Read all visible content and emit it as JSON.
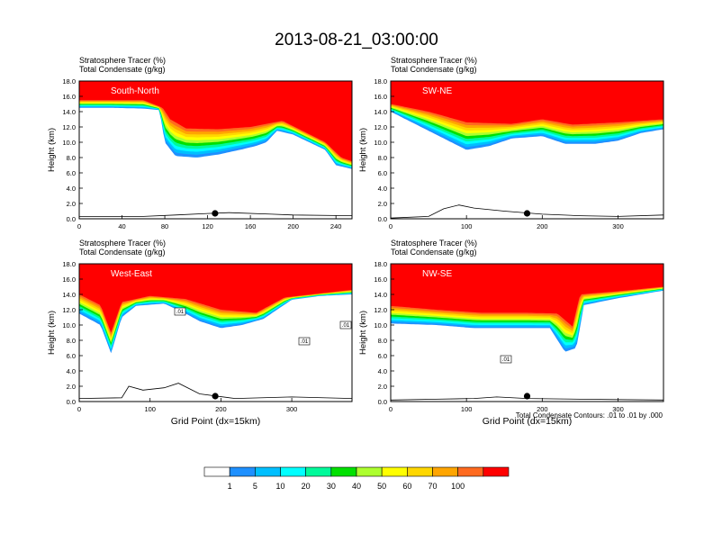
{
  "title": "2013-08-21_03:00:00",
  "colors": {
    "levels": [
      "#ffffff",
      "#1e90ff",
      "#00bfff",
      "#00ffff",
      "#00fa9a",
      "#00e000",
      "#adff2f",
      "#ffff00",
      "#ffd700",
      "#ffa500",
      "#ff6a1f",
      "#ff0000"
    ]
  },
  "chart_data": [
    {
      "type": "contour",
      "label": "South-North",
      "left_title_1": "Stratosphere Tracer   (%)",
      "left_title_2": "Total Condensate   (g/kg)",
      "ylabel": "Height (km)",
      "xlabel": "",
      "xlim": [
        0,
        255
      ],
      "ylim": [
        0,
        18
      ],
      "xticks": [
        0,
        40,
        80,
        120,
        160,
        200,
        240
      ],
      "yticks": [
        "0.0",
        "2.0",
        "4.0",
        "6.0",
        "8.0",
        "10.0",
        "12.0",
        "14.0",
        "16.0",
        "18.0"
      ],
      "tropopause_km": [
        [
          0,
          14.5
        ],
        [
          30,
          14.5
        ],
        [
          60,
          14.4
        ],
        [
          75,
          14.2
        ],
        [
          80,
          10
        ],
        [
          90,
          8.2
        ],
        [
          110,
          8.0
        ],
        [
          130,
          8.4
        ],
        [
          150,
          9
        ],
        [
          165,
          9.5
        ],
        [
          175,
          10
        ],
        [
          185,
          11.5
        ],
        [
          200,
          11
        ],
        [
          230,
          9
        ],
        [
          240,
          7
        ],
        [
          255,
          6.5
        ]
      ],
      "red_base_km": [
        [
          0,
          15.5
        ],
        [
          60,
          15.5
        ],
        [
          78,
          14.5
        ],
        [
          85,
          13
        ],
        [
          100,
          11.8
        ],
        [
          130,
          11.7
        ],
        [
          160,
          12
        ],
        [
          190,
          12.8
        ],
        [
          230,
          10
        ],
        [
          245,
          8
        ],
        [
          255,
          7.5
        ]
      ],
      "terrain_km": [
        [
          0,
          0.3
        ],
        [
          60,
          0.3
        ],
        [
          90,
          0.5
        ],
        [
          120,
          0.7
        ],
        [
          140,
          0.8
        ],
        [
          180,
          0.6
        ],
        [
          200,
          0.5
        ],
        [
          255,
          0.4
        ]
      ],
      "marker_x": 127
    },
    {
      "type": "contour",
      "label": "SW-NE",
      "left_title_1": "Stratosphere Tracer   (%)",
      "left_title_2": "Total Condensate   (g/kg)",
      "ylabel": "Height (km)",
      "xlabel": "",
      "xlim": [
        0,
        360
      ],
      "ylim": [
        0,
        18
      ],
      "xticks": [
        0,
        100,
        200,
        300
      ],
      "yticks": [
        "0.0",
        "2.0",
        "4.0",
        "6.0",
        "8.0",
        "10.0",
        "12.0",
        "14.0",
        "16.0",
        "18.0"
      ],
      "tropopause_km": [
        [
          0,
          14
        ],
        [
          30,
          12.5
        ],
        [
          60,
          11
        ],
        [
          100,
          9
        ],
        [
          130,
          9.5
        ],
        [
          160,
          10.5
        ],
        [
          200,
          10.8
        ],
        [
          230,
          9.8
        ],
        [
          270,
          9.8
        ],
        [
          300,
          10.2
        ],
        [
          330,
          11.2
        ],
        [
          360,
          11.7
        ]
      ],
      "red_base_km": [
        [
          0,
          15
        ],
        [
          50,
          14
        ],
        [
          100,
          12.6
        ],
        [
          160,
          12.4
        ],
        [
          200,
          13
        ],
        [
          240,
          12.3
        ],
        [
          300,
          12.6
        ],
        [
          360,
          13
        ]
      ],
      "terrain_km": [
        [
          0,
          0.1
        ],
        [
          50,
          0.3
        ],
        [
          70,
          1.3
        ],
        [
          90,
          1.8
        ],
        [
          110,
          1.4
        ],
        [
          150,
          1
        ],
        [
          200,
          0.6
        ],
        [
          250,
          0.4
        ],
        [
          300,
          0.3
        ],
        [
          360,
          0.5
        ]
      ],
      "marker_x": 180
    },
    {
      "type": "contour",
      "label": "West-East",
      "left_title_1": "Stratosphere Tracer   (%)",
      "left_title_2": "Total Condensate   (g/kg)",
      "ylabel": "Height (km)",
      "xlabel": "Grid Point (dx=15km)",
      "xlim": [
        0,
        385
      ],
      "ylim": [
        0,
        18
      ],
      "xticks": [
        0,
        100,
        200,
        300
      ],
      "yticks": [
        "0.0",
        "2.0",
        "4.0",
        "6.0",
        "8.0",
        "10.0",
        "12.0",
        "14.0",
        "16.0",
        "18.0"
      ],
      "tropopause_km": [
        [
          0,
          11.5
        ],
        [
          30,
          10
        ],
        [
          45,
          6.3
        ],
        [
          60,
          11
        ],
        [
          80,
          12.5
        ],
        [
          120,
          12.8
        ],
        [
          150,
          11.5
        ],
        [
          170,
          10.5
        ],
        [
          200,
          9.6
        ],
        [
          230,
          10
        ],
        [
          260,
          10.8
        ],
        [
          300,
          13.3
        ],
        [
          340,
          13.8
        ],
        [
          385,
          14
        ]
      ],
      "red_base_km": [
        [
          0,
          14
        ],
        [
          30,
          12.6
        ],
        [
          45,
          9
        ],
        [
          60,
          13
        ],
        [
          100,
          13.8
        ],
        [
          150,
          13.4
        ],
        [
          200,
          12
        ],
        [
          250,
          11.6
        ],
        [
          290,
          13.6
        ],
        [
          385,
          14.6
        ]
      ],
      "terrain_km": [
        [
          0,
          0.4
        ],
        [
          60,
          0.5
        ],
        [
          70,
          2
        ],
        [
          90,
          1.5
        ],
        [
          120,
          1.8
        ],
        [
          140,
          2.4
        ],
        [
          170,
          1
        ],
        [
          220,
          0.4
        ],
        [
          300,
          0.6
        ],
        [
          385,
          0.4
        ]
      ],
      "marker_x": 192,
      "contour_labels": [
        ".01",
        ".01",
        ".01"
      ]
    },
    {
      "type": "contour",
      "label": "NW-SE",
      "left_title_1": "Stratosphere Tracer   (%)",
      "left_title_2": "Total Condensate   (g/kg)",
      "ylabel": "Height (km)",
      "xlabel": "Grid Point (dx=15km)",
      "xlim": [
        0,
        360
      ],
      "ylim": [
        0,
        18
      ],
      "xticks": [
        0,
        100,
        200,
        300
      ],
      "yticks": [
        "0.0",
        "2.0",
        "4.0",
        "6.0",
        "8.0",
        "10.0",
        "12.0",
        "14.0",
        "16.0",
        "18.0"
      ],
      "tropopause_km": [
        [
          0,
          10.2
        ],
        [
          60,
          10
        ],
        [
          110,
          9.6
        ],
        [
          160,
          9.6
        ],
        [
          210,
          9.6
        ],
        [
          230,
          6.5
        ],
        [
          245,
          7
        ],
        [
          255,
          12.6
        ],
        [
          300,
          13.5
        ],
        [
          360,
          14.5
        ]
      ],
      "red_base_km": [
        [
          0,
          12.5
        ],
        [
          60,
          12
        ],
        [
          120,
          11.6
        ],
        [
          180,
          11.6
        ],
        [
          220,
          11.5
        ],
        [
          240,
          9.8
        ],
        [
          250,
          14
        ],
        [
          300,
          14.4
        ],
        [
          360,
          15
        ]
      ],
      "terrain_km": [
        [
          0,
          0.2
        ],
        [
          60,
          0.3
        ],
        [
          110,
          0.4
        ],
        [
          140,
          0.6
        ],
        [
          180,
          0.4
        ],
        [
          250,
          0.3
        ],
        [
          360,
          0.2
        ]
      ],
      "marker_x": 180,
      "contour_labels": [
        ".01"
      ]
    }
  ],
  "contour_note": "Total Condensate Contours: .01 to .01 by .000",
  "colorbar": {
    "ticks": [
      "1",
      "5",
      "10",
      "20",
      "30",
      "40",
      "50",
      "60",
      "70",
      "100"
    ]
  }
}
